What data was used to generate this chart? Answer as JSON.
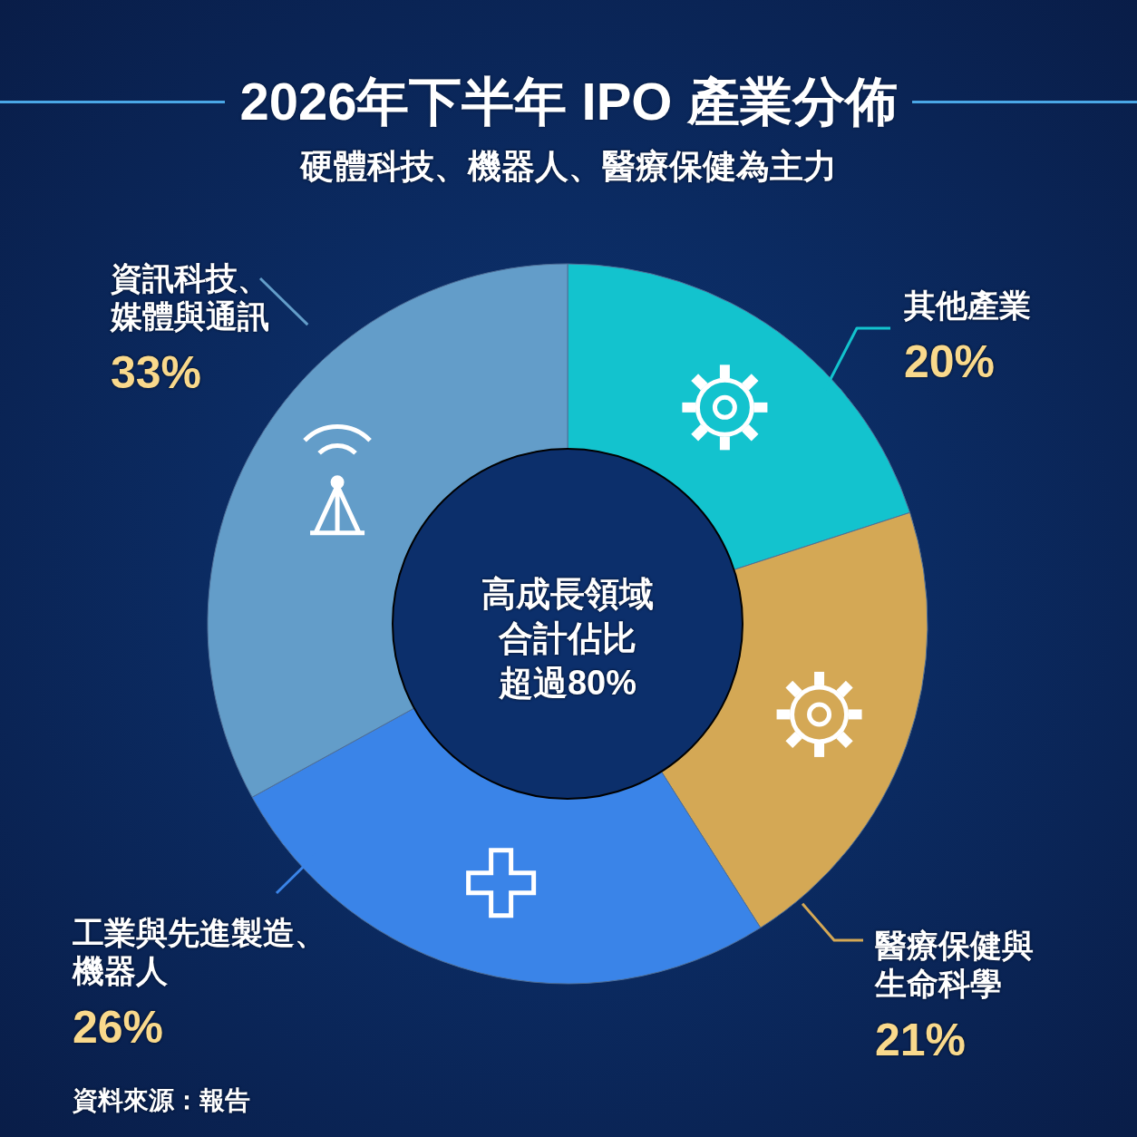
{
  "chart_data": {
    "type": "donut",
    "title": "2026年下半年 IPO 產業分佈",
    "subtitle": "硬體科技、機器人、醫療保健為主力",
    "categories": [
      "其他產業",
      "醫療保健與生命科學",
      "工業與先進製造、機器人",
      "資訊科技、媒體與通訊"
    ],
    "values": [
      20,
      21,
      26,
      33
    ],
    "colors": [
      "#13c3ce",
      "#d4a855",
      "#3a84e8",
      "#639dc9"
    ],
    "value_labels": [
      "20%",
      "21%",
      "26%",
      "33%"
    ],
    "annotations": [
      "高成長領域",
      "合計佔比",
      "超過80%",
      "資料來源：報告"
    ]
  }
}
